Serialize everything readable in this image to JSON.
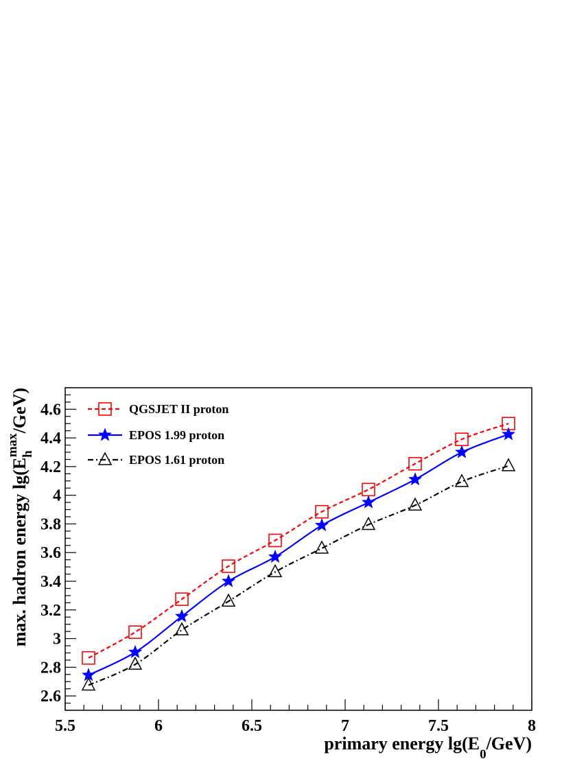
{
  "chart_data": {
    "type": "line",
    "title": "",
    "xlabel": {
      "main": "primary energy lg(E",
      "sub": "0",
      "tail": "/GeV)"
    },
    "ylabel": {
      "main": "max. hadron energy lg(E",
      "sub": "h",
      "sup": "max",
      "tail": "/GeV)"
    },
    "xlim": [
      5.5,
      8
    ],
    "ylim": [
      2.5,
      4.75
    ],
    "xticks": [
      5.5,
      6,
      6.5,
      7,
      7.5,
      8
    ],
    "xtick_labels": [
      "5.5",
      "6",
      "6.5",
      "7",
      "7.5",
      "8"
    ],
    "yticks": [
      2.6,
      2.8,
      3.0,
      3.2,
      3.4,
      3.6,
      3.8,
      4.0,
      4.2,
      4.4,
      4.6
    ],
    "ytick_labels": [
      "2.6",
      "2.8",
      "3",
      "3.2",
      "3.4",
      "3.6",
      "3.8",
      "4",
      "4.2",
      "4.4",
      "4.6"
    ],
    "grid": false,
    "legend_position": "top-left",
    "x": [
      5.625,
      5.875,
      6.125,
      6.375,
      6.625,
      6.875,
      7.125,
      7.375,
      7.625,
      7.875
    ],
    "series": [
      {
        "name": "QGSJET II proton",
        "color": "#ff0000",
        "marker": "open-square",
        "line_style": "dashed",
        "values": [
          2.865,
          3.045,
          3.275,
          3.505,
          3.685,
          3.885,
          4.04,
          4.22,
          4.39,
          4.5
        ]
      },
      {
        "name": "EPOS 1.99 proton",
        "color": "#0000ff",
        "marker": "filled-star",
        "line_style": "solid",
        "values": [
          2.745,
          2.905,
          3.155,
          3.4,
          3.57,
          3.79,
          3.95,
          4.11,
          4.3,
          4.425
        ]
      },
      {
        "name": "EPOS 1.61 proton",
        "color": "#000000",
        "marker": "open-triangle",
        "line_style": "dash-dot",
        "values": [
          2.675,
          2.82,
          3.06,
          3.26,
          3.465,
          3.63,
          3.795,
          3.93,
          4.095,
          4.205
        ]
      }
    ]
  }
}
